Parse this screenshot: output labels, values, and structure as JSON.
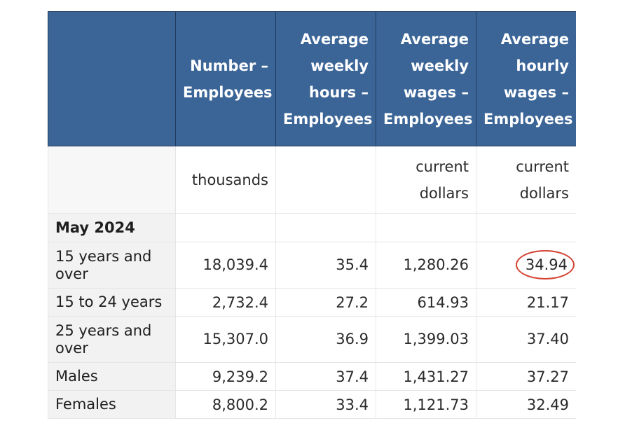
{
  "table": {
    "headers": [
      [],
      [
        "Number –",
        "Employees"
      ],
      [
        "Average",
        "weekly",
        "hours –",
        "Employees"
      ],
      [
        "Average",
        "weekly",
        "wages –",
        "Employees"
      ],
      [
        "Average",
        "hourly",
        "wages –",
        "Employees"
      ]
    ],
    "units": [
      [],
      [
        "thousands"
      ],
      [],
      [
        "current",
        "dollars"
      ],
      [
        "current",
        "dollars"
      ]
    ],
    "section_label": "May 2024",
    "rows": [
      {
        "label": "15 years and over",
        "values": [
          "18,039.4",
          "35.4",
          "1,280.26",
          "34.94"
        ]
      },
      {
        "label": "15 to 24 years",
        "values": [
          "2,732.4",
          "27.2",
          "614.93",
          "21.17"
        ]
      },
      {
        "label": "25 years and over",
        "values": [
          "15,307.0",
          "36.9",
          "1,399.03",
          "37.40"
        ]
      },
      {
        "label": "Males",
        "values": [
          "9,239.2",
          "37.4",
          "1,431.27",
          "37.27"
        ]
      },
      {
        "label": "Females",
        "values": [
          "8,800.2",
          "33.4",
          "1,121.73",
          "32.49"
        ]
      }
    ],
    "highlight_color": "#d44232",
    "header_color": "#3b6597"
  }
}
